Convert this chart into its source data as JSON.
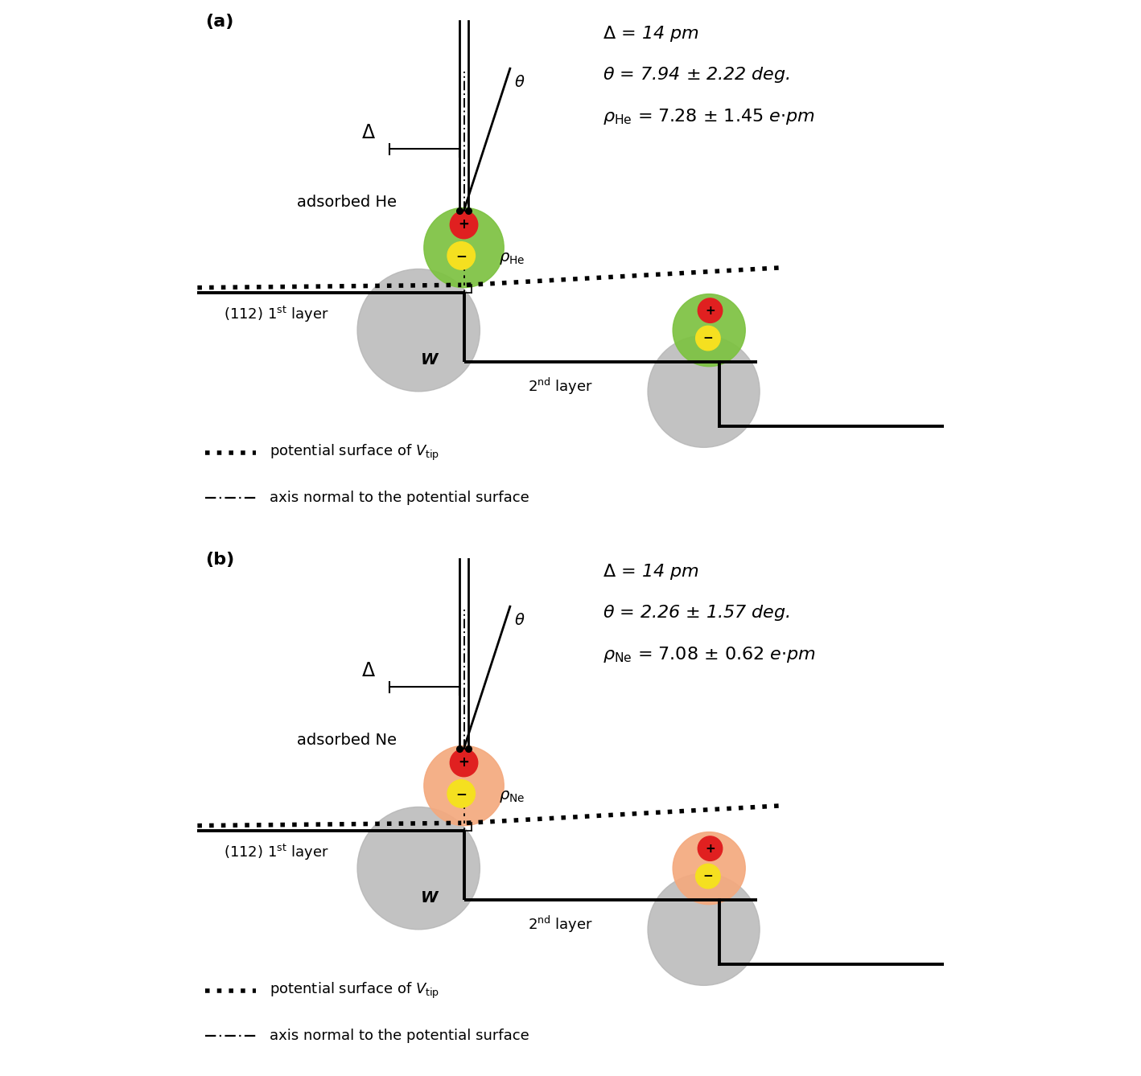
{
  "fig_width": 14.18,
  "fig_height": 13.38,
  "bg_color": "#ffffff",
  "panels": [
    {
      "label": "(a)",
      "atom_color": "#7dc241",
      "atom_gray": "#b5b5b5",
      "red_color": "#e02020",
      "yellow_color": "#f5e020",
      "adsorbed_text": "adsorbed He",
      "rho_sub": "He",
      "ann1": "$\\it{\\Delta}$ = 14 pm",
      "ann2": "$\\it{\\theta}$ = 7.94 $\\pm$ 2.22 deg.",
      "ann3_rho": "$\\rho_{\\rm He}$",
      "ann3_val": " = 7.28 $\\pm$ 1.45 $\\it{e}$$\\cdot$$\\it{pm}$"
    },
    {
      "label": "(b)",
      "atom_color": "#f4a97e",
      "atom_gray": "#b5b5b5",
      "red_color": "#e02020",
      "yellow_color": "#f5e020",
      "adsorbed_text": "adsorbed Ne",
      "rho_sub": "Ne",
      "ann1": "$\\it{\\Delta}$ = 14 pm",
      "ann2": "$\\it{\\theta}$ = 2.26 $\\pm$ 1.57 deg.",
      "ann3_rho": "$\\rho_{\\rm Ne}$",
      "ann3_val": " = 7.08 $\\pm$ 0.62 $\\it{e}$$\\cdot$$\\it{pm}$"
    }
  ]
}
